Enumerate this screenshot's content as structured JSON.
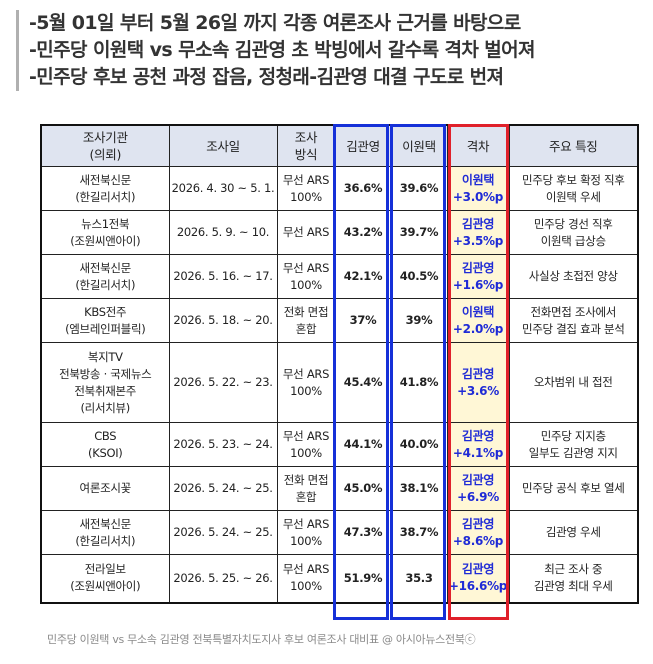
{
  "headline": [
    "-5월 01일 부터 5월 26일 까지 각종 여론조사 근거를 바탕으로",
    "-민주당 이원택 vs 무소속 김관영 초 박빙에서 갈수록 격차 벌어져",
    "-민주당 후보 공천 과정 잡음, 정청래-김관영 대결 구도로 번져"
  ],
  "table": {
    "headers": [
      [
        "조사기관",
        "(의뢰)"
      ],
      [
        "조사일"
      ],
      [
        "조사",
        "방식"
      ],
      [
        "김관영"
      ],
      [
        "이원택"
      ],
      [
        "격차"
      ],
      [
        "주요 특징"
      ]
    ],
    "rows": [
      {
        "org": [
          "새전북신문",
          "(한길리서치)"
        ],
        "date": "2026. 4. 30 ~ 5. 1.",
        "method": [
          "무선 ARS",
          "100%"
        ],
        "kim": "36.6%",
        "lee": "39.6%",
        "gap": [
          "이원택",
          "+3.0%p"
        ],
        "note": [
          "민주당 후보 확정 직후",
          "이원택 우세"
        ]
      },
      {
        "org": [
          "뉴스1전북",
          "(조원씨앤아이)"
        ],
        "date": "2026. 5. 9. ~ 10.",
        "method": [
          "무선 ARS"
        ],
        "kim": "43.2%",
        "lee": "39.7%",
        "gap": [
          "김관영",
          "+3.5%p"
        ],
        "note": [
          "민주당 경선 직후",
          "이원택 급상승"
        ]
      },
      {
        "org": [
          "새전북신문",
          "(한길리서치)"
        ],
        "date": "2026. 5. 16. ~ 17.",
        "method": [
          "무선 ARS",
          "100%"
        ],
        "kim": "42.1%",
        "lee": "40.5%",
        "gap": [
          "김관영",
          "+1.6%p"
        ],
        "note": [
          "사실상 초접전 양상"
        ]
      },
      {
        "org": [
          "KBS전주",
          "(엠브레인퍼블릭)"
        ],
        "date": "2026. 5. 18. ~ 20.",
        "method": [
          "전화 면접",
          "혼합"
        ],
        "kim": "37%",
        "lee": "39%",
        "gap": [
          "이원택",
          "+2.0%p"
        ],
        "note": [
          "전화면접 조사에서",
          "민주당 결집 효과 분석"
        ]
      },
      {
        "org": [
          "복지TV",
          "전북방송 · 국제뉴스",
          "전북취재본주",
          "(리서치뷰)"
        ],
        "date": "2026. 5. 22. ~ 23.",
        "method": [
          "무선 ARS",
          "100%"
        ],
        "kim": "45.4%",
        "lee": "41.8%",
        "gap": [
          "김관영",
          "+3.6%"
        ],
        "note": [
          "오차범위 내 접전"
        ]
      },
      {
        "org": [
          "CBS",
          "(KSOI)"
        ],
        "date": "2026. 5. 23. ~ 24.",
        "method": [
          "무선 ARS",
          "100%"
        ],
        "kim": "44.1%",
        "lee": "40.0%",
        "gap": [
          "김관영",
          "+4.1%p"
        ],
        "note": [
          "민주당 지지층",
          "일부도 김관영 지지"
        ]
      },
      {
        "org": [
          "여론조시꽃"
        ],
        "date": "2026. 5. 24. ~ 25.",
        "method": [
          "전화 면접",
          "혼합"
        ],
        "kim": "45.0%",
        "lee": "38.1%",
        "gap": [
          "김관영",
          "+6.9%"
        ],
        "note": [
          "민주당 공식 후보 열세"
        ]
      },
      {
        "org": [
          "새전북신문",
          "(한길리서치)"
        ],
        "date": "2026. 5. 24. ~ 25.",
        "method": [
          "무선 ARS",
          "100%"
        ],
        "kim": "47.3%",
        "lee": "38.7%",
        "gap": [
          "김관영",
          "+8.6%p"
        ],
        "note": [
          "김관영 우세"
        ]
      },
      {
        "org": [
          "전라일보",
          "(조원씨앤아이)"
        ],
        "date": "2026. 5. 25. ~ 26.",
        "method": [
          "무선 ARS",
          "100%"
        ],
        "kim": "51.9%",
        "lee": "35.3",
        "gap": [
          "김관영",
          "+16.6%p"
        ],
        "note": [
          "최근 조사 중",
          "김관영 최대 우세"
        ]
      }
    ]
  },
  "colors": {
    "header_bg": "#dfe4f0",
    "gap_bg": "#fff7d6",
    "gap_text": "#1f2bd6",
    "blue_frame": "#1530d8",
    "red_frame": "#e0202a"
  },
  "caption": "민주당 이원택 vs 무소속 김관영  전북특별자치도지사 후보 여론조사 대비표 @ 아시아뉴스전북ⓒ"
}
